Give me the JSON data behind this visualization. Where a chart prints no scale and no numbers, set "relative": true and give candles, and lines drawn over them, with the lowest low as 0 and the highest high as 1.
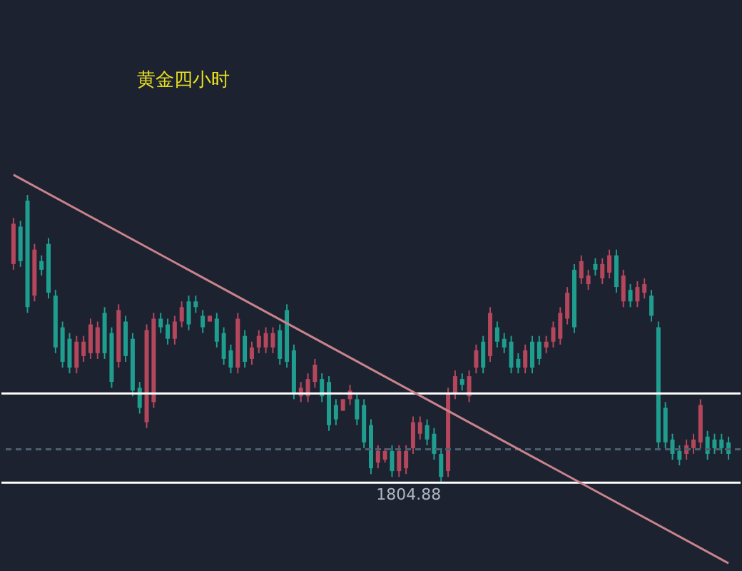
{
  "chart_data": {
    "type": "candlestick",
    "title": "黄金四小时",
    "relative": true,
    "tick_labels": false,
    "annotations": [
      "1804.88"
    ],
    "categories": [
      null,
      null,
      null,
      null,
      null,
      null,
      null,
      null,
      null,
      null,
      null,
      null,
      null,
      null,
      null,
      null,
      null,
      null,
      null,
      null,
      null,
      null,
      null,
      null,
      null,
      null,
      null,
      null,
      null,
      null,
      null,
      null,
      null,
      null,
      null,
      null,
      null,
      null,
      null,
      null,
      null,
      null,
      null,
      null,
      null,
      null,
      null,
      null,
      null,
      null,
      null,
      null,
      null,
      null,
      null,
      null,
      null,
      null,
      null,
      null,
      null,
      null,
      null,
      null,
      null,
      null,
      null,
      null,
      null,
      null,
      null,
      null,
      null,
      null,
      null,
      null,
      null,
      null,
      null,
      null,
      null,
      null,
      null,
      null,
      null,
      null,
      null,
      null,
      null,
      null,
      null,
      null,
      null,
      null,
      null,
      null,
      null,
      null,
      null,
      null,
      null,
      null,
      null
    ],
    "ohlc": [
      [
        0.76,
        0.92,
        0.74,
        0.9
      ],
      [
        0.89,
        0.91,
        0.75,
        0.77
      ],
      [
        0.98,
        1,
        0.59,
        0.61
      ],
      [
        0.65,
        0.83,
        0.63,
        0.81
      ],
      [
        0.77,
        0.79,
        0.72,
        0.74
      ],
      [
        0.83,
        0.85,
        0.64,
        0.66
      ],
      [
        0.65,
        0.67,
        0.45,
        0.47
      ],
      [
        0.54,
        0.56,
        0.4,
        0.42
      ],
      [
        0.5,
        0.52,
        0.38,
        0.4
      ],
      [
        0.4,
        0.51,
        0.38,
        0.49
      ],
      [
        0.44,
        0.51,
        0.42,
        0.49
      ],
      [
        0.45,
        0.57,
        0.43,
        0.55
      ],
      [
        0.45,
        0.56,
        0.43,
        0.54
      ],
      [
        0.59,
        0.61,
        0.43,
        0.45
      ],
      [
        0.52,
        0.54,
        0.33,
        0.35
      ],
      [
        0.42,
        0.62,
        0.4,
        0.6
      ],
      [
        0.56,
        0.58,
        0.42,
        0.44
      ],
      [
        0.5,
        0.52,
        0.3,
        0.32
      ],
      [
        0.33,
        0.35,
        0.24,
        0.26
      ],
      [
        0.21,
        0.55,
        0.19,
        0.53
      ],
      [
        0.28,
        0.59,
        0.26,
        0.57
      ],
      [
        0.57,
        0.59,
        0.52,
        0.54
      ],
      [
        0.55,
        0.57,
        0.48,
        0.5
      ],
      [
        0.5,
        0.58,
        0.48,
        0.56
      ],
      [
        0.56,
        0.63,
        0.54,
        0.61
      ],
      [
        0.63,
        0.65,
        0.53,
        0.55
      ],
      [
        0.63,
        0.65,
        0.59,
        0.61
      ],
      [
        0.58,
        0.6,
        0.52,
        0.54
      ],
      [
        0.56,
        0.58,
        0.56,
        0.58
      ],
      [
        0.57,
        0.59,
        0.47,
        0.49
      ],
      [
        0.52,
        0.54,
        0.41,
        0.43
      ],
      [
        0.46,
        0.48,
        0.38,
        0.4
      ],
      [
        0.4,
        0.59,
        0.38,
        0.57
      ],
      [
        0.51,
        0.53,
        0.4,
        0.42
      ],
      [
        0.43,
        0.49,
        0.41,
        0.47
      ],
      [
        0.47,
        0.53,
        0.45,
        0.51
      ],
      [
        0.47,
        0.54,
        0.45,
        0.52
      ],
      [
        0.47,
        0.54,
        0.45,
        0.52
      ],
      [
        0.53,
        0.55,
        0.41,
        0.43
      ],
      [
        0.6,
        0.62,
        0.4,
        0.42
      ],
      [
        0.46,
        0.48,
        0.29,
        0.31
      ],
      [
        0.3,
        0.35,
        0.28,
        0.33
      ],
      [
        0.3,
        0.38,
        0.28,
        0.36
      ],
      [
        0.35,
        0.43,
        0.33,
        0.41
      ],
      [
        0.36,
        0.38,
        0.28,
        0.3
      ],
      [
        0.35,
        0.37,
        0.18,
        0.2
      ],
      [
        0.27,
        0.29,
        0.2,
        0.22
      ],
      [
        0.25,
        0.29,
        0.25,
        0.29
      ],
      [
        0.29,
        0.34,
        0.27,
        0.32
      ],
      [
        0.29,
        0.31,
        0.2,
        0.22
      ],
      [
        0.27,
        0.29,
        0.12,
        0.14
      ],
      [
        0.2,
        0.22,
        0.03,
        0.05
      ],
      [
        0.07,
        0.13,
        0.05,
        0.11
      ],
      [
        0.08,
        0.12,
        0.07,
        0.11
      ],
      [
        0.11,
        0.13,
        0.02,
        0.04
      ],
      [
        0.04,
        0.13,
        0.02,
        0.11
      ],
      [
        0.05,
        0.13,
        0.03,
        0.11
      ],
      [
        0.12,
        0.23,
        0.1,
        0.21
      ],
      [
        0.17,
        0.23,
        0.15,
        0.21
      ],
      [
        0.2,
        0.22,
        0.13,
        0.15
      ],
      [
        0.17,
        0.19,
        0.08,
        0.1
      ],
      [
        0.1,
        0.12,
        0,
        0.02
      ],
      [
        0.04,
        0.33,
        0.02,
        0.31
      ],
      [
        0.31,
        0.39,
        0.29,
        0.37
      ],
      [
        0.36,
        0.38,
        0.32,
        0.34
      ],
      [
        0.3,
        0.39,
        0.28,
        0.37
      ],
      [
        0.4,
        0.48,
        0.38,
        0.46
      ],
      [
        0.49,
        0.51,
        0.38,
        0.4
      ],
      [
        0.44,
        0.61,
        0.42,
        0.59
      ],
      [
        0.54,
        0.56,
        0.47,
        0.49
      ],
      [
        0.5,
        0.52,
        0.45,
        0.47
      ],
      [
        0.49,
        0.51,
        0.38,
        0.4
      ],
      [
        0.43,
        0.45,
        0.38,
        0.4
      ],
      [
        0.4,
        0.48,
        0.38,
        0.46
      ],
      [
        0.49,
        0.51,
        0.38,
        0.4
      ],
      [
        0.49,
        0.51,
        0.41,
        0.43
      ],
      [
        0.47,
        0.51,
        0.45,
        0.49
      ],
      [
        0.49,
        0.56,
        0.47,
        0.54
      ],
      [
        0.5,
        0.61,
        0.48,
        0.59
      ],
      [
        0.57,
        0.68,
        0.55,
        0.66
      ],
      [
        0.74,
        0.76,
        0.52,
        0.54
      ],
      [
        0.71,
        0.79,
        0.69,
        0.77
      ],
      [
        0.69,
        0.74,
        0.67,
        0.72
      ],
      [
        0.76,
        0.78,
        0.72,
        0.74
      ],
      [
        0.71,
        0.78,
        0.69,
        0.76
      ],
      [
        0.73,
        0.81,
        0.71,
        0.79
      ],
      [
        0.79,
        0.81,
        0.66,
        0.68
      ],
      [
        0.63,
        0.74,
        0.61,
        0.72
      ],
      [
        0.67,
        0.69,
        0.61,
        0.63
      ],
      [
        0.63,
        0.7,
        0.61,
        0.68
      ],
      [
        0.66,
        0.71,
        0.64,
        0.69
      ],
      [
        0.65,
        0.67,
        0.56,
        0.58
      ],
      [
        0.54,
        0.56,
        0.12,
        0.14
      ],
      [
        0.26,
        0.28,
        0.12,
        0.14
      ],
      [
        0.15,
        0.17,
        0.08,
        0.1
      ],
      [
        0.11,
        0.13,
        0.06,
        0.08
      ],
      [
        0.1,
        0.15,
        0.08,
        0.13
      ],
      [
        0.12,
        0.17,
        0.1,
        0.15
      ],
      [
        0.14,
        0.29,
        0.12,
        0.27
      ],
      [
        0.16,
        0.18,
        0.08,
        0.1
      ],
      [
        0.15,
        0.17,
        0.1,
        0.12
      ],
      [
        0.15,
        0.17,
        0.1,
        0.12
      ],
      [
        0.14,
        0.16,
        0.08,
        0.1
      ]
    ],
    "series": [
      {
        "type": "line",
        "color": "#c9838c",
        "values": [
          1.07,
          null,
          null,
          null,
          null,
          null,
          null,
          null,
          null,
          null,
          null,
          null,
          null,
          null,
          null,
          null,
          null,
          null,
          null,
          null,
          null,
          null,
          null,
          null,
          null,
          null,
          null,
          null,
          null,
          null,
          null,
          null,
          null,
          null,
          null,
          null,
          null,
          null,
          null,
          null,
          null,
          null,
          null,
          null,
          null,
          null,
          null,
          null,
          null,
          null,
          null,
          null,
          null,
          null,
          null,
          null,
          null,
          null,
          null,
          null,
          null,
          null,
          null,
          null,
          null,
          null,
          null,
          null,
          null,
          null,
          null,
          null,
          null,
          null,
          null,
          null,
          null,
          null,
          null,
          null,
          null,
          null,
          null,
          null,
          null,
          null,
          null,
          null,
          null,
          null,
          null,
          null,
          null,
          null,
          null,
          null,
          null,
          null,
          null,
          null,
          null,
          null,
          -0.28
        ]
      }
    ],
    "ref_lines": [
      {
        "axis": "y",
        "value": 0.31,
        "color": "#ffffff",
        "line_style": "solid"
      },
      {
        "axis": "y",
        "value": 0,
        "color": "#ffffff",
        "line_style": "solid"
      },
      {
        "axis": "y",
        "value": 0.116,
        "color": "#4d6070",
        "line_style": "dashed"
      }
    ],
    "colors": [
      "#b5475d",
      "#1f9e8f",
      "#1f9e8f",
      "#b5475d",
      "#1f9e8f",
      "#1f9e8f",
      "#1f9e8f",
      "#1f9e8f",
      "#1f9e8f",
      "#b5475d",
      "#b5475d",
      "#b5475d",
      "#b5475d",
      "#1f9e8f",
      "#1f9e8f",
      "#b5475d",
      "#1f9e8f",
      "#1f9e8f",
      "#1f9e8f",
      "#b5475d",
      "#b5475d",
      "#1f9e8f",
      "#1f9e8f",
      "#b5475d",
      "#b5475d",
      "#1f9e8f",
      "#1f9e8f",
      "#1f9e8f",
      "#b5475d",
      "#1f9e8f",
      "#1f9e8f",
      "#1f9e8f",
      "#b5475d",
      "#1f9e8f",
      "#b5475d",
      "#b5475d",
      "#b5475d",
      "#b5475d",
      "#1f9e8f",
      "#1f9e8f",
      "#1f9e8f",
      "#b5475d",
      "#b5475d",
      "#b5475d",
      "#1f9e8f",
      "#1f9e8f",
      "#1f9e8f",
      "#b5475d",
      "#b5475d",
      "#1f9e8f",
      "#1f9e8f",
      "#1f9e8f",
      "#b5475d",
      "#b5475d",
      "#1f9e8f",
      "#b5475d",
      "#b5475d",
      "#b5475d",
      "#b5475d",
      "#1f9e8f",
      "#1f9e8f",
      "#1f9e8f",
      "#b5475d",
      "#b5475d",
      "#1f9e8f",
      "#b5475d",
      "#b5475d",
      "#1f9e8f",
      "#b5475d",
      "#1f9e8f",
      "#1f9e8f",
      "#1f9e8f",
      "#1f9e8f",
      "#b5475d",
      "#1f9e8f",
      "#1f9e8f",
      "#b5475d",
      "#b5475d",
      "#b5475d",
      "#b5475d",
      "#1f9e8f",
      "#b5475d",
      "#b5475d",
      "#1f9e8f",
      "#b5475d",
      "#b5475d",
      "#1f9e8f",
      "#b5475d",
      "#1f9e8f",
      "#b5475d",
      "#b5475d",
      "#1f9e8f",
      "#1f9e8f",
      "#1f9e8f",
      "#1f9e8f",
      "#1f9e8f",
      "#b5475d",
      "#b5475d",
      "#b5475d",
      "#1f9e8f",
      "#1f9e8f",
      "#1f9e8f",
      "#1f9e8f"
    ]
  }
}
